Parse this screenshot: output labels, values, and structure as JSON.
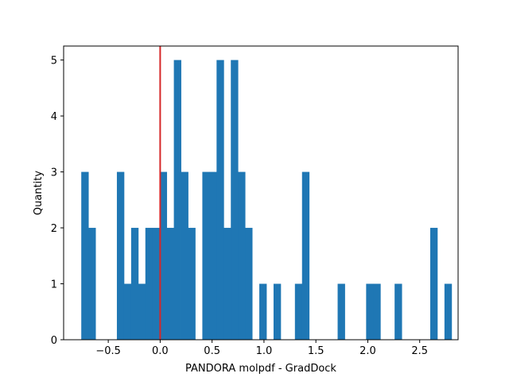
{
  "chart_data": {
    "type": "bar",
    "subtype": "histogram",
    "title": "",
    "xlabel": "PANDORA molpdf - GradDock",
    "ylabel": "Quantity",
    "xlim": [
      -0.93,
      2.87
    ],
    "ylim": [
      0,
      5.25
    ],
    "xticks": [
      -0.5,
      0.0,
      0.5,
      1.0,
      1.5,
      2.0,
      2.5
    ],
    "xtick_labels": [
      "−0.5",
      "0.0",
      "0.5",
      "1.0",
      "1.5",
      "2.0",
      "2.5"
    ],
    "yticks": [
      0,
      1,
      2,
      3,
      4,
      5
    ],
    "ytick_labels": [
      "0",
      "1",
      "2",
      "3",
      "4",
      "5"
    ],
    "bin_start": -0.76,
    "bin_width": 0.0686,
    "counts": [
      3,
      2,
      0,
      0,
      0,
      3,
      1,
      2,
      1,
      2,
      2,
      3,
      2,
      5,
      3,
      2,
      0,
      3,
      3,
      5,
      2,
      5,
      3,
      2,
      0,
      1,
      0,
      1,
      0,
      0,
      1,
      3,
      0,
      0,
      0,
      0,
      1,
      0,
      0,
      0,
      1,
      1,
      0,
      0,
      1,
      0,
      0,
      0,
      0,
      2,
      0,
      1
    ],
    "bar_color": "#1f77b4",
    "reference_line": {
      "x": 0.0,
      "color": "#d62728"
    },
    "grid": false,
    "legend": "none"
  }
}
